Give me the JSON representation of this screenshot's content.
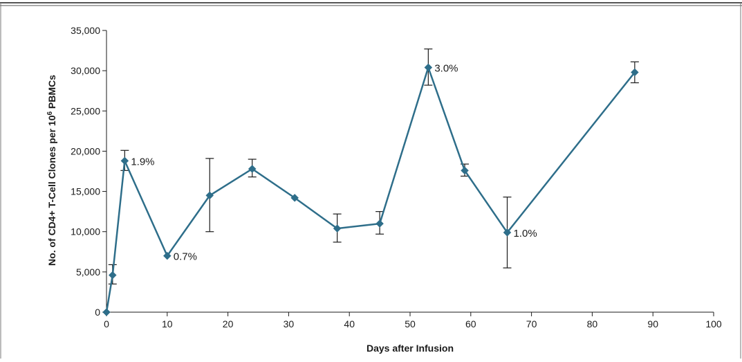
{
  "chart_data": {
    "type": "line",
    "xlabel": "Days after Infusion",
    "ylabel": {
      "text": "No. of CD4+ T-Cell Clones per 10",
      "superscript": "6",
      "suffix": " PBMCs"
    },
    "xlim": [
      0,
      100
    ],
    "ylim": [
      0,
      35000
    ],
    "x_ticks": [
      0,
      10,
      20,
      30,
      40,
      50,
      60,
      70,
      80,
      90,
      100
    ],
    "y_ticks": [
      0,
      5000,
      10000,
      15000,
      20000,
      25000,
      30000,
      35000
    ],
    "x_tick_labels": [
      "0",
      "10",
      "20",
      "30",
      "40",
      "50",
      "60",
      "70",
      "80",
      "90",
      "100"
    ],
    "y_tick_labels": [
      "0",
      "5,000",
      "10,000",
      "15,000",
      "20,000",
      "25,000",
      "30,000",
      "35,000"
    ],
    "grid": false,
    "series_color": "#2e6e8a",
    "error_bar_color": "#1a1a1a",
    "points": [
      {
        "x": 0,
        "y": 0,
        "err_low": null,
        "err_high": null
      },
      {
        "x": 1,
        "y": 4600,
        "err_low": 3500,
        "err_high": 5900
      },
      {
        "x": 3,
        "y": 18800,
        "err_low": 17600,
        "err_high": 20100
      },
      {
        "x": 10,
        "y": 7000,
        "err_low": null,
        "err_high": null
      },
      {
        "x": 17,
        "y": 14500,
        "err_low": 10000,
        "err_high": 19100
      },
      {
        "x": 24,
        "y": 17800,
        "err_low": 16800,
        "err_high": 19000
      },
      {
        "x": 31,
        "y": 14200,
        "err_low": null,
        "err_high": null
      },
      {
        "x": 38,
        "y": 10400,
        "err_low": 8700,
        "err_high": 12200
      },
      {
        "x": 45,
        "y": 11000,
        "err_low": 9700,
        "err_high": 12500
      },
      {
        "x": 53,
        "y": 30400,
        "err_low": 28200,
        "err_high": 32700
      },
      {
        "x": 59,
        "y": 17600,
        "err_low": 16900,
        "err_high": 18400
      },
      {
        "x": 66,
        "y": 9900,
        "err_low": 5500,
        "err_high": 14300
      },
      {
        "x": 87,
        "y": 29800,
        "err_low": 28500,
        "err_high": 31100
      }
    ],
    "annotations": [
      {
        "x": 3,
        "y": 18800,
        "text": "1.9%"
      },
      {
        "x": 10,
        "y": 7000,
        "text": "0.7%"
      },
      {
        "x": 53,
        "y": 30400,
        "text": "3.0%"
      },
      {
        "x": 66,
        "y": 9900,
        "text": "1.0%"
      }
    ]
  }
}
